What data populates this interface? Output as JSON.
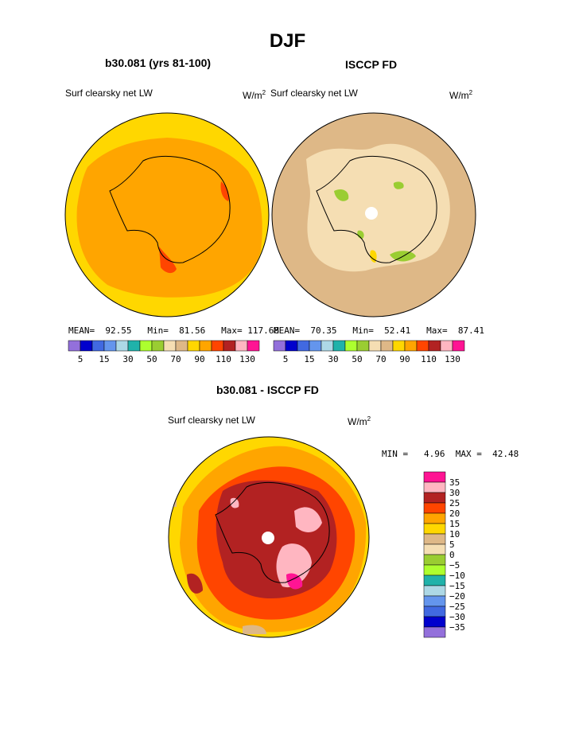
{
  "page": {
    "title": "DJF",
    "left_panel": {
      "case": "b30.081 (yrs 81-100)",
      "field": "Surf clearsky net LW",
      "units_base": "W/m",
      "units_exp": "2",
      "stats": {
        "mean_label": "MEAN=",
        "mean": "92.55",
        "min_label": "Min=",
        "min": "81.56",
        "max_label": "Max=",
        "max": "117.68"
      }
    },
    "right_panel": {
      "case": "ISCCP FD",
      "field": "Surf clearsky net LW",
      "units_base": "W/m",
      "units_exp": "2",
      "stats": {
        "mean_label": "MEAN=",
        "mean": "70.35",
        "min_label": "Min=",
        "min": "52.41",
        "max_label": "Max=",
        "max": "87.41"
      }
    },
    "top_colorbar": {
      "colors": [
        "#9370db",
        "#0000cd",
        "#4169e1",
        "#6495ed",
        "#add8e6",
        "#20b2aa",
        "#adff2f",
        "#9acd32",
        "#f5deb3",
        "#deb887",
        "#ffd700",
        "#ffa500",
        "#ff4500",
        "#b22222",
        "#ffb6c1",
        "#ff1493"
      ],
      "tick_labels": [
        "5",
        "15",
        "30",
        "50",
        "70",
        "90",
        "110",
        "130"
      ]
    },
    "diff_panel": {
      "title": "b30.081 - ISCCP FD",
      "field": "Surf clearsky net LW",
      "units_base": "W/m",
      "units_exp": "2",
      "stats": {
        "min_label": "MIN =",
        "min": "4.96",
        "max_label": "MAX =",
        "max": "42.48"
      },
      "colorbar": {
        "colors_top_to_bottom": [
          "#ff1493",
          "#ffb6c1",
          "#b22222",
          "#ff4500",
          "#ffa500",
          "#ffd700",
          "#deb887",
          "#f5deb3",
          "#9acd32",
          "#adff2f",
          "#20b2aa",
          "#add8e6",
          "#6495ed",
          "#4169e1",
          "#0000cd",
          "#9370db"
        ],
        "tick_labels_top_to_bottom": [
          "35",
          "30",
          "25",
          "20",
          "15",
          "10",
          "5",
          "0",
          "−5",
          "−10",
          "−15",
          "−20",
          "−25",
          "−30",
          "−35"
        ]
      }
    }
  },
  "colors": {
    "orange": "#ffa500",
    "yellow": "#ffd700",
    "red_orange": "#ff4500",
    "dark_red": "#b22222",
    "pink": "#ffb6c1",
    "magenta": "#ff1493",
    "tan": "#deb887",
    "wheat": "#f5deb3",
    "green": "#9acd32"
  }
}
